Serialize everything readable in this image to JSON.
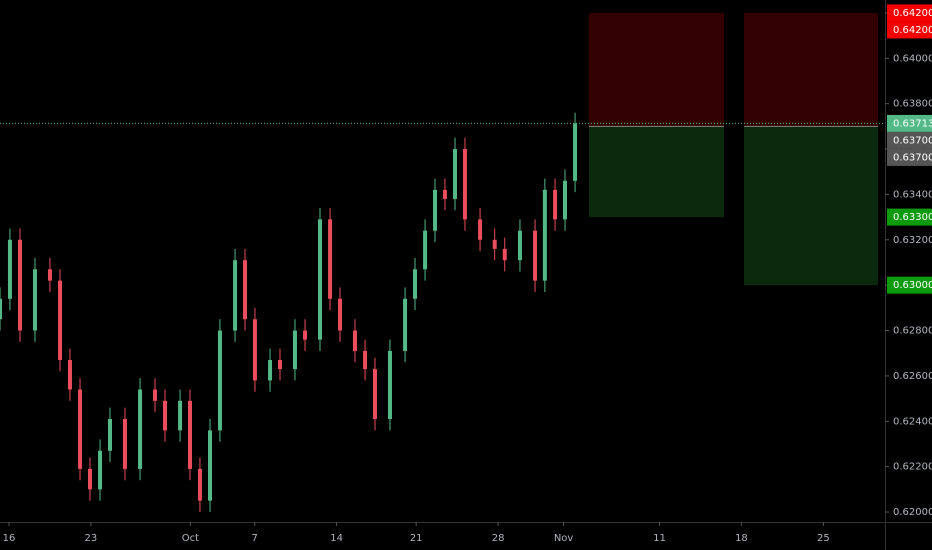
{
  "chart_data": {
    "type": "candlestick",
    "x": [
      -0.77,
      0.08,
      0.94,
      2.22,
      3.5,
      4.36,
      5.21,
      6.07,
      6.92,
      7.78,
      8.63,
      9.91,
      11.2,
      12.48,
      13.33,
      14.62,
      15.47,
      16.32,
      17.18,
      18.03,
      19.32,
      20.17,
      21.02,
      22.31,
      23.16,
      24.44,
      25.3,
      26.58,
      27.44,
      28.29,
      29.57,
      30.43,
      31.28,
      32.56,
      33.85,
      34.7,
      35.56,
      36.41,
      37.26,
      38.12,
      38.97,
      40.26,
      41.51,
      42.37,
      43.67,
      44.96,
      45.8,
      46.67,
      47.52,
      48.38
    ],
    "open": [
      0.6285,
      0.6294,
      0.632,
      0.628,
      0.6307,
      0.6302,
      0.6267,
      0.6254,
      0.6219,
      0.621,
      0.6227,
      0.6241,
      0.6219,
      0.6254,
      0.6249,
      0.6236,
      0.6249,
      0.6219,
      0.6205,
      0.6236,
      0.628,
      0.6311,
      0.6285,
      0.6258,
      0.6267,
      0.6263,
      0.628,
      0.6276,
      0.6329,
      0.6294,
      0.628,
      0.6271,
      0.6263,
      0.6241,
      0.6271,
      0.6294,
      0.6307,
      0.6324,
      0.6342,
      0.6338,
      0.636,
      0.6329,
      0.632,
      0.6316,
      0.6311,
      0.6324,
      0.6302,
      0.6342,
      0.6329,
      0.6346
    ],
    "high": [
      0.6299,
      0.6325,
      0.6325,
      0.6312,
      0.6312,
      0.6307,
      0.6272,
      0.6259,
      0.6224,
      0.6232,
      0.6246,
      0.6246,
      0.6259,
      0.6259,
      0.6254,
      0.6254,
      0.6254,
      0.6224,
      0.6241,
      0.6285,
      0.6316,
      0.6316,
      0.629,
      0.6272,
      0.6272,
      0.6285,
      0.6285,
      0.6334,
      0.6334,
      0.6299,
      0.6285,
      0.6276,
      0.6268,
      0.6276,
      0.6299,
      0.6312,
      0.6329,
      0.6347,
      0.6347,
      0.6365,
      0.6365,
      0.6334,
      0.6325,
      0.6321,
      0.6329,
      0.6329,
      0.6347,
      0.6347,
      0.6351,
      0.6376
    ],
    "low": [
      0.628,
      0.6289,
      0.6275,
      0.6275,
      0.6297,
      0.6262,
      0.6249,
      0.6214,
      0.6205,
      0.6205,
      0.6222,
      0.6214,
      0.6214,
      0.6244,
      0.6231,
      0.6231,
      0.6214,
      0.62,
      0.62,
      0.6231,
      0.6275,
      0.628,
      0.6253,
      0.6253,
      0.6258,
      0.6258,
      0.6271,
      0.6271,
      0.6289,
      0.6275,
      0.6266,
      0.6258,
      0.6236,
      0.6236,
      0.6266,
      0.6289,
      0.6302,
      0.6319,
      0.6333,
      0.6333,
      0.6324,
      0.6315,
      0.6311,
      0.6306,
      0.6306,
      0.6297,
      0.6297,
      0.6324,
      0.6324,
      0.6341
    ],
    "close": [
      0.6294,
      0.632,
      0.628,
      0.6307,
      0.6302,
      0.6267,
      0.6254,
      0.6219,
      0.621,
      0.6227,
      0.6241,
      0.6219,
      0.6254,
      0.6249,
      0.6236,
      0.6249,
      0.6219,
      0.6205,
      0.6236,
      0.628,
      0.6311,
      0.6285,
      0.6258,
      0.6267,
      0.6263,
      0.628,
      0.6276,
      0.6329,
      0.6294,
      0.628,
      0.6271,
      0.6263,
      0.6241,
      0.6271,
      0.6294,
      0.6307,
      0.6324,
      0.6342,
      0.6338,
      0.636,
      0.6329,
      0.632,
      0.6316,
      0.6311,
      0.6324,
      0.6302,
      0.6342,
      0.6329,
      0.6346,
      0.63713
    ],
    "up_color": "#53b987",
    "down_color": "#eb4d5c",
    "xlim": [
      -0.77,
      74.87
    ],
    "xticks": [
      {
        "value": 0,
        "label": "16"
      },
      {
        "value": 7,
        "label": "23"
      },
      {
        "value": 15.5,
        "label": "Oct"
      },
      {
        "value": 21,
        "label": "7"
      },
      {
        "value": 28,
        "label": "14"
      },
      {
        "value": 34.8,
        "label": "21"
      },
      {
        "value": 41.8,
        "label": "28"
      },
      {
        "value": 47.4,
        "label": "Nov"
      },
      {
        "value": 55.6,
        "label": "11"
      },
      {
        "value": 62.6,
        "label": "18"
      },
      {
        "value": 69.6,
        "label": "25"
      }
    ],
    "ylim": [
      0.61956,
      0.64257
    ],
    "yticks": [
      {
        "value": 0.62,
        "label": "0.62000"
      },
      {
        "value": 0.622,
        "label": "0.62200"
      },
      {
        "value": 0.624,
        "label": "0.62400"
      },
      {
        "value": 0.626,
        "label": "0.62600"
      },
      {
        "value": 0.628,
        "label": "0.62800"
      },
      {
        "value": 0.63,
        "label": "0.63000"
      },
      {
        "value": 0.632,
        "label": "0.63200"
      },
      {
        "value": 0.634,
        "label": "0.63400"
      },
      {
        "value": 0.636,
        "label": "0.63600"
      },
      {
        "value": 0.638,
        "label": "0.63800"
      },
      {
        "value": 0.64,
        "label": "0.64000"
      },
      {
        "value": 0.642,
        "label": "0.64200"
      }
    ],
    "last_price": {
      "value": 0.63713,
      "label": "0.63713",
      "color": "#53b987"
    },
    "positions": [
      {
        "start": 49.57,
        "end": 61.11,
        "stop": {
          "value": 0.642,
          "label": "0.64200"
        },
        "entry": {
          "value": 0.637,
          "label": "0.63700"
        },
        "target": {
          "value": 0.633,
          "label": "0.63300"
        }
      },
      {
        "start": 62.82,
        "end": 74.27,
        "stop": {
          "value": 0.642,
          "label": "0.64200"
        },
        "entry": {
          "value": 0.637,
          "label": "0.63700"
        },
        "target": {
          "value": 0.63,
          "label": "0.63000"
        }
      }
    ],
    "stop_color": "#330002",
    "target_color": "#0b2a0d",
    "stop_label_color": "#f40000",
    "entry_label_color": "#555555",
    "target_label_color": "#0d9a0d"
  }
}
